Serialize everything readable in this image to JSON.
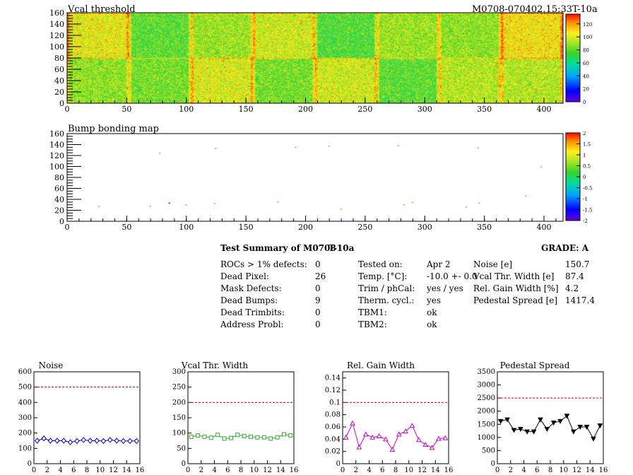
{
  "colors": {
    "axis": "#000000",
    "limit_line": "#cc0000",
    "noise_series": "#0000cc",
    "vcal_series": "#33aa33",
    "gain_series": "#cc00cc",
    "pedestal_series": "#000000"
  },
  "header": {
    "title_left": "Vcal threshold",
    "title_right": "M0708-070402.15:33T-10a"
  },
  "chart_data": [
    {
      "type": "heatmap",
      "title": "Vcal threshold",
      "x_ticks": [
        "0",
        "50",
        "100",
        "150",
        "200",
        "250",
        "300",
        "350",
        "400"
      ],
      "y_ticks": [
        "0",
        "20",
        "40",
        "60",
        "80",
        "100",
        "120",
        "140",
        "160"
      ],
      "xlim": [
        0,
        416
      ],
      "ylim": [
        0,
        160
      ],
      "palette_ticks": [
        "0",
        "20",
        "40",
        "60",
        "80",
        "100",
        "120"
      ],
      "zlim": [
        0,
        135
      ]
    },
    {
      "type": "scatter",
      "title": "Bump bonding map",
      "x_ticks": [
        "0",
        "50",
        "100",
        "150",
        "200",
        "250",
        "300",
        "350",
        "400"
      ],
      "y_ticks": [
        "0",
        "20",
        "40",
        "60",
        "80",
        "100",
        "120",
        "140",
        "160"
      ],
      "xlim": [
        0,
        416
      ],
      "ylim": [
        0,
        160
      ],
      "palette_ticks": [
        "2",
        "1.5",
        "1",
        "0.5",
        "0",
        "-0.5",
        "-1",
        "-1.5",
        "-2"
      ],
      "zlim": [
        -2,
        2
      ],
      "points": [
        {
          "x": 26,
          "y": 27,
          "z": 0.5
        },
        {
          "x": 77,
          "y": 124,
          "z": 0.5
        },
        {
          "x": 69,
          "y": 27,
          "z": 0.5
        },
        {
          "x": 85,
          "y": 33,
          "z": 2
        },
        {
          "x": 99,
          "y": 30,
          "z": 0.5
        },
        {
          "x": 124,
          "y": 133,
          "z": 0.5
        },
        {
          "x": 123,
          "y": 32,
          "z": 0.5
        },
        {
          "x": 176,
          "y": 35,
          "z": 0.5
        },
        {
          "x": 191,
          "y": 135,
          "z": 0.5
        },
        {
          "x": 219,
          "y": 137,
          "z": 0.5
        },
        {
          "x": 229,
          "y": 22,
          "z": 0.5
        },
        {
          "x": 277,
          "y": 138,
          "z": 0.5
        },
        {
          "x": 282,
          "y": 30,
          "z": 0.5
        },
        {
          "x": 289,
          "y": 34,
          "z": 0.5
        },
        {
          "x": 334,
          "y": 26,
          "z": 0.5
        },
        {
          "x": 344,
          "y": 134,
          "z": 0.5
        },
        {
          "x": 345,
          "y": 33,
          "z": 0.5
        },
        {
          "x": 384,
          "y": 46,
          "z": 0.5
        },
        {
          "x": 397,
          "y": 99,
          "z": 0.5
        }
      ]
    },
    {
      "type": "scatter",
      "title": "Noise",
      "xlim": [
        0,
        16
      ],
      "ylim": [
        0,
        600
      ],
      "x_ticks": [
        "0",
        "2",
        "4",
        "6",
        "8",
        "10",
        "12",
        "14",
        "16"
      ],
      "y_ticks": [
        "0",
        "100",
        "200",
        "300",
        "400",
        "500",
        "600"
      ],
      "limit": 500,
      "x": [
        0.5,
        1.5,
        2.5,
        3.5,
        4.5,
        5.5,
        6.5,
        7.5,
        8.5,
        9.5,
        10.5,
        11.5,
        12.5,
        13.5,
        14.5,
        15.5
      ],
      "y": [
        150,
        165,
        150,
        150,
        150,
        140,
        148,
        155,
        150,
        150,
        148,
        155,
        150,
        148,
        148,
        148
      ]
    },
    {
      "type": "line",
      "title": "Vcal Thr. Width",
      "xlim": [
        0,
        16
      ],
      "ylim": [
        0,
        300
      ],
      "x_ticks": [
        "0",
        "2",
        "4",
        "6",
        "8",
        "10",
        "12",
        "14",
        "16"
      ],
      "y_ticks": [
        "0",
        "50",
        "100",
        "150",
        "200",
        "250",
        "300"
      ],
      "limit": 200,
      "x": [
        0.5,
        1.5,
        2.5,
        3.5,
        4.5,
        5.5,
        6.5,
        7.5,
        8.5,
        9.5,
        10.5,
        11.5,
        12.5,
        13.5,
        14.5,
        15.5
      ],
      "y": [
        88,
        92,
        88,
        85,
        94,
        82,
        84,
        94,
        90,
        88,
        86,
        86,
        82,
        86,
        96,
        92
      ]
    },
    {
      "type": "line",
      "title": "Rel. Gain Width",
      "xlim": [
        0,
        16
      ],
      "ylim": [
        0,
        0.15
      ],
      "x_ticks": [
        "0",
        "2",
        "4",
        "6",
        "8",
        "10",
        "12",
        "14",
        "16"
      ],
      "y_ticks": [
        "0",
        "0.02",
        "0.04",
        "0.06",
        "0.08",
        "0.1",
        "0.12",
        "0.14"
      ],
      "limit": 0.1,
      "x": [
        0.5,
        1.5,
        2.5,
        3.5,
        4.5,
        5.5,
        6.5,
        7.5,
        8.5,
        9.5,
        10.5,
        11.5,
        12.5,
        13.5,
        14.5,
        15.5
      ],
      "y": [
        0.043,
        0.066,
        0.027,
        0.048,
        0.043,
        0.045,
        0.04,
        0.023,
        0.048,
        0.053,
        0.062,
        0.039,
        0.031,
        0.026,
        0.041,
        0.042
      ]
    },
    {
      "type": "line",
      "title": "Pedestal Spread",
      "xlim": [
        0,
        16
      ],
      "ylim": [
        0,
        3500
      ],
      "x_ticks": [
        "0",
        "2",
        "4",
        "6",
        "8",
        "10",
        "12",
        "14",
        "16"
      ],
      "y_ticks": [
        "0",
        "500",
        "1000",
        "1500",
        "2000",
        "2500",
        "3000",
        "3500"
      ],
      "limit": 2500,
      "x": [
        0.5,
        1.5,
        2.5,
        3.5,
        4.5,
        5.5,
        6.5,
        7.5,
        8.5,
        9.5,
        10.5,
        11.5,
        12.5,
        13.5,
        14.5,
        15.5
      ],
      "y": [
        1620,
        1680,
        1280,
        1320,
        1220,
        1220,
        1680,
        1320,
        1560,
        1620,
        1820,
        1220,
        1400,
        1400,
        950,
        1450
      ]
    }
  ],
  "summary": {
    "title": "Test Summary of M0708",
    "subtitle": "T-10a",
    "grade": "GRADE:  A",
    "col1": [
      {
        "label": "ROCs > 1% defects:",
        "value": "0"
      },
      {
        "label": "Dead Pixel:",
        "value": "26"
      },
      {
        "label": "Mask Defects:",
        "value": "0"
      },
      {
        "label": "Dead Bumps:",
        "value": "9"
      },
      {
        "label": "Dead Trimbits:",
        "value": "0"
      },
      {
        "label": "Address Probl:",
        "value": "0"
      }
    ],
    "col2": [
      {
        "label": "Tested on:",
        "value": "Apr 2"
      },
      {
        "label": "Temp. [°C]:",
        "value": "-10.0 +- 0.0"
      },
      {
        "label": "Trim / phCal:",
        "value": "yes / yes"
      },
      {
        "label": "Therm. cycl.:",
        "value": "yes"
      },
      {
        "label": "TBM1:",
        "value": "ok"
      },
      {
        "label": "TBM2:",
        "value": "ok"
      }
    ],
    "col3": [
      {
        "label": "Noise [e]",
        "value": "150.7"
      },
      {
        "label": "Vcal Thr. Width [e]",
        "value": "87.4"
      },
      {
        "label": "Rel. Gain Width [%]",
        "value": "4.2"
      },
      {
        "label": "Pedestal Spread [e]",
        "value": "1417.4"
      }
    ]
  }
}
